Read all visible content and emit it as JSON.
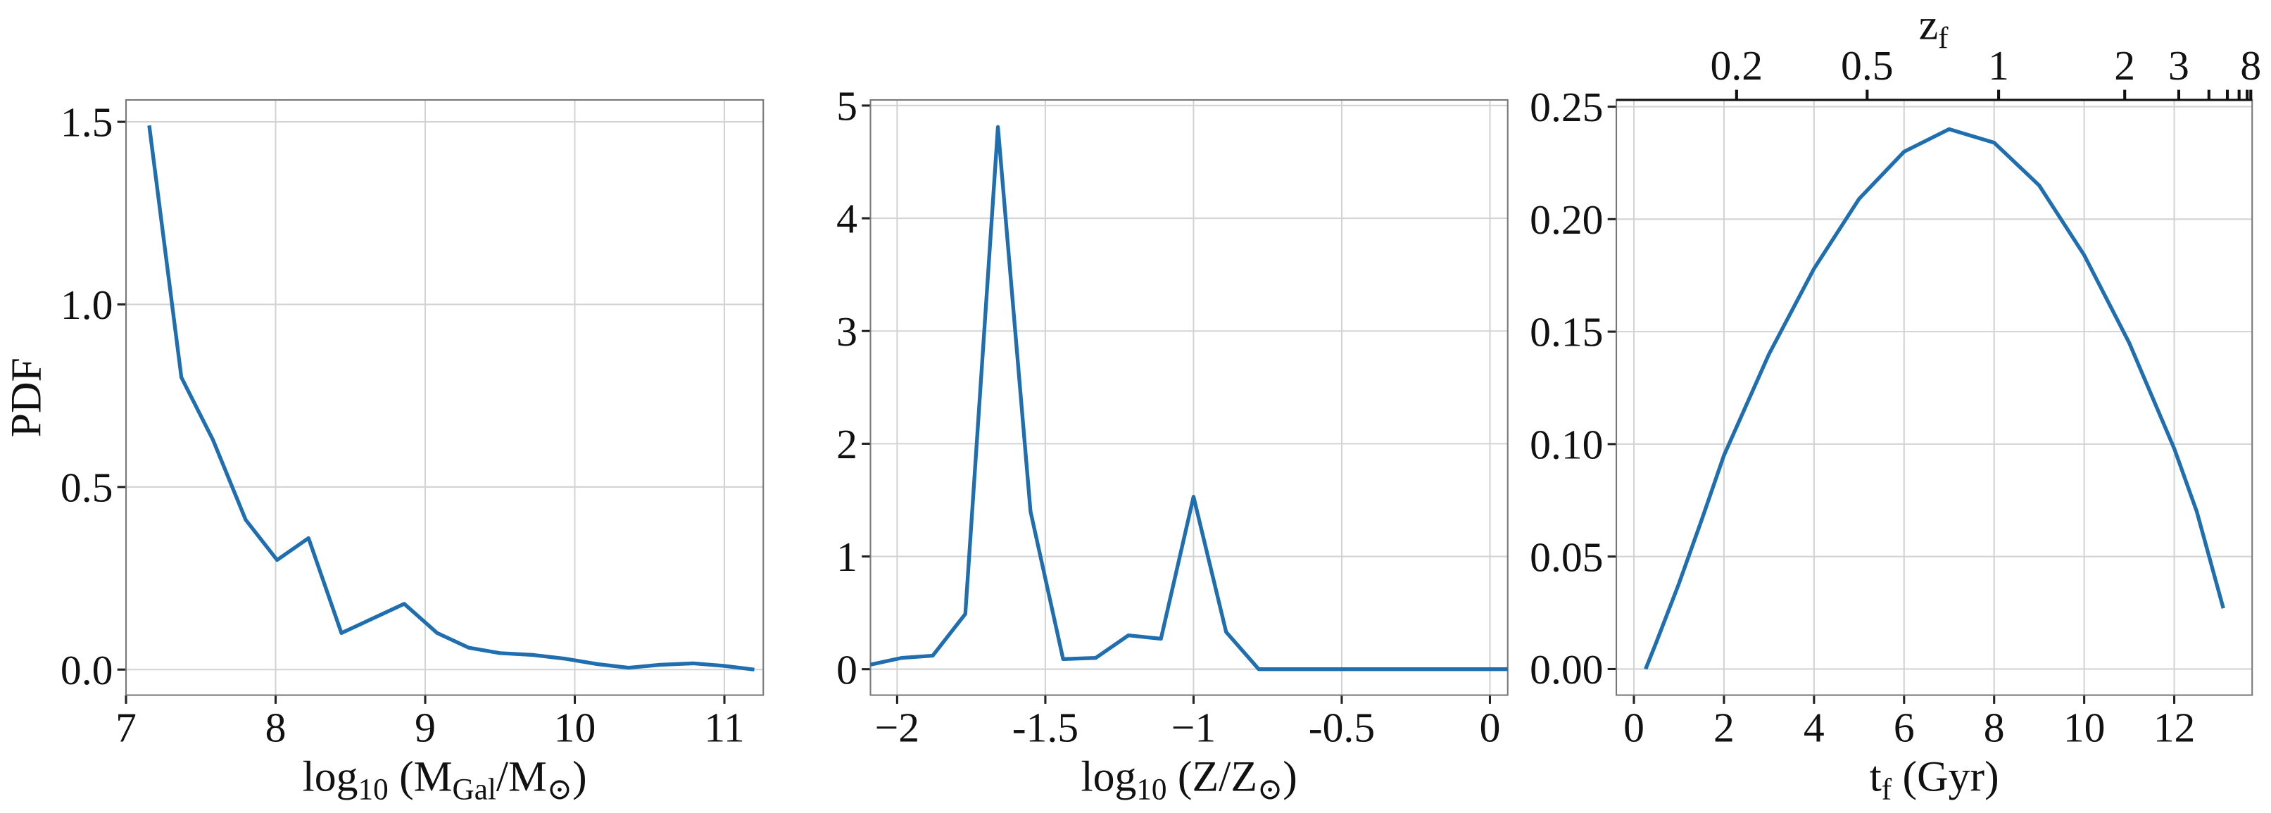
{
  "chart_data": [
    {
      "type": "line",
      "y_label": "PDF",
      "x_label": [
        "log",
        "10",
        " (M",
        "Gal",
        "/M",
        "⊙",
        ")"
      ],
      "x": [
        7.155,
        7.37,
        7.58,
        7.8,
        8.01,
        8.22,
        8.44,
        8.65,
        8.86,
        9.08,
        9.29,
        9.5,
        9.72,
        9.93,
        10.15,
        10.36,
        10.57,
        10.79,
        11.0,
        11.2
      ],
      "values": [
        1.49,
        0.8,
        0.63,
        0.41,
        0.3,
        0.36,
        0.1,
        0.14,
        0.18,
        0.1,
        0.06,
        0.045,
        0.04,
        0.03,
        0.015,
        0.005,
        0.013,
        0.017,
        0.01,
        0.0
      ],
      "color": "#1f6fb0",
      "grid": true,
      "xlim": [
        7,
        11.26
      ],
      "ylim": [
        -0.07,
        1.56
      ],
      "xticks": [
        7,
        8,
        9,
        10,
        11
      ],
      "yticks": [
        {
          "value": 0,
          "label": "0.0"
        },
        0.5,
        {
          "value": 1,
          "label": "1.0"
        },
        1.5
      ]
    },
    {
      "type": "line",
      "x_label": [
        "log",
        "10",
        " (Z/Z",
        "⊙",
        ")"
      ],
      "x": [
        -2.09,
        -1.985,
        -1.88,
        -1.77,
        -1.66,
        -1.55,
        -1.44,
        -1.33,
        -1.22,
        -1.11,
        -1.0,
        -0.89,
        -0.78,
        -0.5,
        0,
        0.06
      ],
      "values": [
        0.04,
        0.1,
        0.12,
        0.49,
        4.81,
        1.4,
        0.09,
        0.1,
        0.3,
        0.27,
        1.53,
        0.33,
        0,
        0,
        0,
        0
      ],
      "color": "#1f6fb0",
      "grid": true,
      "xlim": [
        -2.09,
        0.06
      ],
      "ylim": [
        -0.23,
        5.05
      ],
      "xticks": [
        {
          "value": -2,
          "label": "−2"
        },
        {
          "value": -1.5,
          "label": "-1.5"
        },
        {
          "value": -1,
          "label": "−1"
        },
        {
          "value": -0.5,
          "label": "-0.5"
        },
        0
      ],
      "yticks": [
        0,
        1,
        2,
        3,
        4,
        5
      ]
    },
    {
      "type": "line",
      "x_label": [
        "t",
        "f",
        " (Gyr)"
      ],
      "x2_label": [
        "z",
        "f"
      ],
      "x": [
        0.26,
        0.5,
        1,
        1.5,
        2,
        3,
        4,
        5,
        6,
        7,
        8,
        9,
        10,
        11,
        12,
        12.5,
        13.09
      ],
      "values": [
        0,
        0.012,
        0.038,
        0.066,
        0.095,
        0.14,
        0.178,
        0.209,
        0.23,
        0.24,
        0.234,
        0.215,
        0.184,
        0.145,
        0.098,
        0.07,
        0.027
      ],
      "color": "#1f6fb0",
      "grid": true,
      "xlim": [
        -0.39,
        13.73
      ],
      "ylim": [
        -0.0116,
        0.253
      ],
      "xticks": [
        0,
        2,
        4,
        6,
        8,
        10,
        12
      ],
      "x2ticks": [
        {
          "value": 2.28,
          "label": "0.2"
        },
        {
          "value": 5.18,
          "label": "0.5"
        },
        {
          "value": 8.1,
          "label": "1"
        },
        {
          "value": 10.9,
          "label": "2"
        },
        {
          "value": 12.1,
          "label": "3"
        },
        {
          "value": 12.77,
          "label": null
        },
        {
          "value": 13.18,
          "label": null
        },
        {
          "value": 13.44,
          "label": null
        },
        {
          "value": 13.62,
          "label": null
        },
        {
          "value": 13.7,
          "label": "8"
        }
      ],
      "yticks": [
        {
          "value": 0,
          "label": "0.00"
        },
        {
          "value": 0.05,
          "label": "0.05"
        },
        {
          "value": 0.1,
          "label": "0.10"
        },
        {
          "value": 0.15,
          "label": "0.15"
        },
        {
          "value": 0.2,
          "label": "0.20"
        },
        {
          "value": 0.25,
          "label": "0.25"
        }
      ]
    }
  ]
}
